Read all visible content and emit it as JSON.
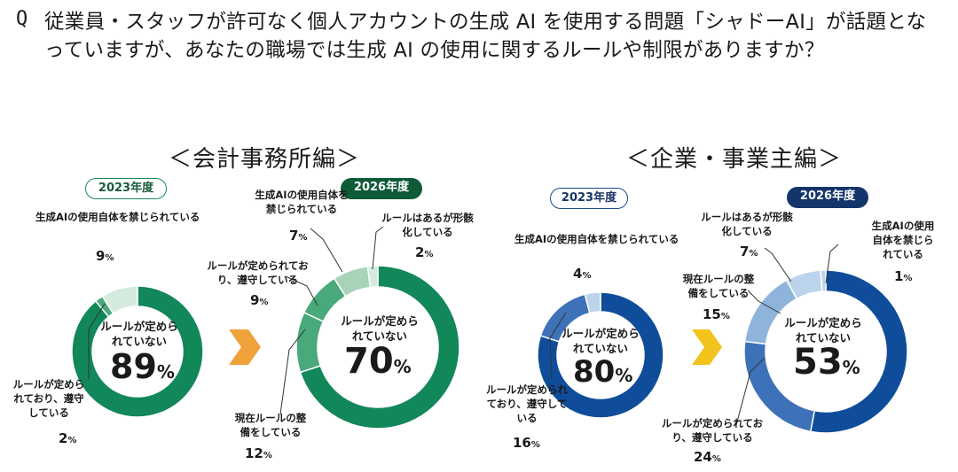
{
  "question": {
    "mark": "Q",
    "text": "従業員・スタッフが許可なく個人アカウントの生成 AI を使用する問題「シャドーAI」が話題となっていますが、あなたの職場では生成 AI の使用に関するルールや制限がありますか？"
  },
  "sections": [
    {
      "title": "＜会計事務所編＞"
    },
    {
      "title": "＜企業・事業主編＞"
    }
  ],
  "colors": {
    "green_dark": "#12875a",
    "green_mid": "#4aa97a",
    "green_light": "#a8d3b9",
    "green_pale": "#d4eadc",
    "blue_dark": "#0f4d9a",
    "blue_mid": "#3d72b8",
    "blue_light": "#8fb4dc",
    "blue_pale": "#bcd3ec",
    "arrow_orange": "#f0a23a",
    "arrow_yellow": "#f2c21d"
  },
  "chart_data": [
    {
      "type": "pie",
      "section": "＜会計事務所編＞",
      "year_label": "2023年度",
      "categories": [
        "ルールが定められていない",
        "ルールが定められており、遵守している",
        "生成AIの使用自体を禁じられている"
      ],
      "values": [
        89,
        2,
        9
      ],
      "labels": {
        "center": "ルールが定められていない",
        "followed": "ルールが定められており、遵守している",
        "prohibited": "生成AIの使用自体を禁じられている"
      },
      "display": {
        "center": "89",
        "followed": "2",
        "prohibited": "9"
      },
      "unit": "%"
    },
    {
      "type": "pie",
      "section": "＜会計事務所編＞",
      "year_label": "2026年度",
      "categories": [
        "ルールが定められていない",
        "現在ルールの整備をしている",
        "ルールが定められており、遵守している",
        "生成AIの使用自体を禁じられている",
        "ルールはあるが形骸化している"
      ],
      "values": [
        70,
        12,
        9,
        7,
        2
      ],
      "labels": {
        "center": "ルールが定められていない",
        "preparing": "現在ルールの整備をしている",
        "followed": "ルールが定められており、遵守している",
        "prohibited": "生成AIの使用自体を禁じられている",
        "hollow": "ルールはあるが形骸化している"
      },
      "display": {
        "center": "70",
        "preparing": "12",
        "followed": "9",
        "prohibited": "7",
        "hollow": "2"
      },
      "unit": "%"
    },
    {
      "type": "pie",
      "section": "＜企業・事業主編＞",
      "year_label": "2023年度",
      "categories": [
        "ルールが定められていない",
        "ルールが定められており、遵守している",
        "生成AIの使用自体を禁じられている"
      ],
      "values": [
        80,
        16,
        4
      ],
      "labels": {
        "center": "ルールが定められていない",
        "followed": "ルールが定められており、遵守している",
        "prohibited": "生成AIの使用自体を禁じられている"
      },
      "display": {
        "center": "80",
        "followed": "16",
        "prohibited": "4"
      },
      "unit": "%"
    },
    {
      "type": "pie",
      "section": "＜企業・事業主編＞",
      "year_label": "2026年度",
      "categories": [
        "ルールが定められていない",
        "ルールが定められており、遵守している",
        "現在ルールの整備をしている",
        "ルールはあるが形骸化している",
        "生成AIの使用自体を禁じられている"
      ],
      "values": [
        53,
        24,
        15,
        7,
        1
      ],
      "labels": {
        "center": "ルールが定められていない",
        "followed": "ルールが定められており、遵守している",
        "preparing": "現在ルールの整備をしている",
        "hollow": "ルールはあるが形骸化している",
        "prohibited": "生成AIの使用自体を禁じられている"
      },
      "display": {
        "center": "53",
        "followed": "24",
        "preparing": "15",
        "hollow": "7",
        "prohibited": "1"
      },
      "unit": "%"
    }
  ]
}
